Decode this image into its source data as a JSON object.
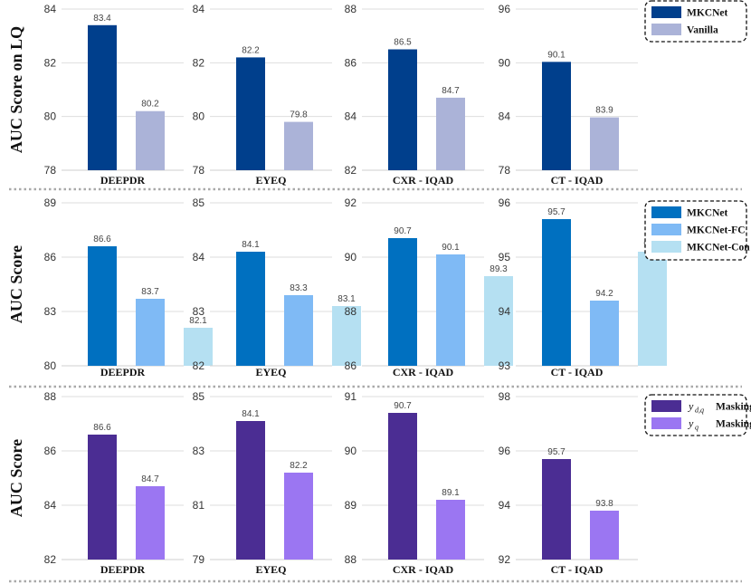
{
  "chart_data": [
    {
      "row_ylabel": "AUC Score on LQ",
      "legend": [
        {
          "label": "MKCNet",
          "color": "#003f8c"
        },
        {
          "label": "Vanilla",
          "color": "#abb3d8"
        }
      ],
      "charts": [
        {
          "type": "bar",
          "category": "DEEPDR",
          "ylim": [
            78,
            84
          ],
          "ticks": [
            "78",
            "80",
            "82",
            "84"
          ],
          "series": [
            {
              "name": "MKCNet",
              "value": 83.4
            },
            {
              "name": "Vanilla",
              "value": 80.2
            }
          ],
          "value_labels": [
            "83.4",
            "80.2"
          ]
        },
        {
          "type": "bar",
          "category": "EYEQ",
          "ylim": [
            78,
            84
          ],
          "ticks": [
            "78",
            "80",
            "82",
            "84"
          ],
          "series": [
            {
              "name": "MKCNet",
              "value": 82.2
            },
            {
              "name": "Vanilla",
              "value": 79.8
            }
          ],
          "value_labels": [
            "82.2",
            "79.8"
          ]
        },
        {
          "type": "bar",
          "category": "CXR - IQAD",
          "ylim": [
            82,
            88
          ],
          "ticks": [
            "82",
            "84",
            "86",
            "88"
          ],
          "series": [
            {
              "name": "MKCNet",
              "value": 86.5
            },
            {
              "name": "Vanilla",
              "value": 84.7
            }
          ],
          "value_labels": [
            "86.5",
            "84.7"
          ]
        },
        {
          "type": "bar",
          "category": "CT - IQAD",
          "ylim": [
            78,
            96
          ],
          "ticks": [
            "78",
            "84",
            "90",
            "96"
          ],
          "series": [
            {
              "name": "MKCNet",
              "value": 90.1
            },
            {
              "name": "Vanilla",
              "value": 83.9
            }
          ],
          "value_labels": [
            "90.1",
            "83.9"
          ]
        }
      ]
    },
    {
      "row_ylabel": "AUC Score",
      "legend": [
        {
          "label": "MKCNet",
          "color": "#0070c0"
        },
        {
          "label": "MKCNet-FC",
          "color": "#7fbaf5"
        },
        {
          "label": "MKCNet-Con",
          "color": "#b5e0f2"
        }
      ],
      "charts": [
        {
          "type": "bar",
          "category": "DEEPDR",
          "ylim": [
            80,
            89
          ],
          "ticks": [
            "80",
            "83",
            "86",
            "89"
          ],
          "series": [
            {
              "name": "MKCNet",
              "value": 86.6
            },
            {
              "name": "MKCNet-FC",
              "value": 83.7
            },
            {
              "name": "MKCNet-Con",
              "value": 82.1
            }
          ],
          "value_labels": [
            "86.6",
            "83.7",
            "82.1"
          ]
        },
        {
          "type": "bar",
          "category": "EYEQ",
          "ylim": [
            82,
            85
          ],
          "ticks": [
            "82",
            "83",
            "84",
            "85"
          ],
          "series": [
            {
              "name": "MKCNet",
              "value": 84.1
            },
            {
              "name": "MKCNet-FC",
              "value": 83.3
            },
            {
              "name": "MKCNet-Con",
              "value": 83.1
            }
          ],
          "value_labels": [
            "84.1",
            "83.3",
            "83.1"
          ]
        },
        {
          "type": "bar",
          "category": "CXR - IQAD",
          "ylim": [
            86,
            92
          ],
          "ticks": [
            "86",
            "88",
            "90",
            "92"
          ],
          "series": [
            {
              "name": "MKCNet",
              "value": 90.7
            },
            {
              "name": "MKCNet-FC",
              "value": 90.1
            },
            {
              "name": "MKCNet-Con",
              "value": 89.3
            }
          ],
          "value_labels": [
            "90.7",
            "90.1",
            "89.3"
          ]
        },
        {
          "type": "bar",
          "category": "CT - IQAD",
          "ylim": [
            93,
            96
          ],
          "ticks": [
            "93",
            "94",
            "95",
            "96"
          ],
          "series": [
            {
              "name": "MKCNet",
              "value": 95.7
            },
            {
              "name": "MKCNet-FC",
              "value": 94.2
            },
            {
              "name": "MKCNet-Con",
              "value": 95.1
            }
          ],
          "value_labels": [
            "95.7",
            "94.2",
            "95.1"
          ]
        }
      ]
    },
    {
      "row_ylabel": "AUC Score",
      "legend": [
        {
          "label_var": "y",
          "label_sub": "d,q",
          "label_suffix": "Masking",
          "color": "#4b2d93"
        },
        {
          "label_var": "y",
          "label_sub": "q",
          "label_suffix": "Masking",
          "color": "#9b76f2"
        }
      ],
      "charts": [
        {
          "type": "bar",
          "category": "DEEPDR",
          "ylim": [
            82,
            88
          ],
          "ticks": [
            "82",
            "84",
            "86",
            "88"
          ],
          "series": [
            {
              "name": "y_d,q Masking",
              "value": 86.6
            },
            {
              "name": "y_q Masking",
              "value": 84.7
            }
          ],
          "value_labels": [
            "86.6",
            "84.7"
          ]
        },
        {
          "type": "bar",
          "category": "EYEQ",
          "ylim": [
            79,
            85
          ],
          "ticks": [
            "79",
            "81",
            "83",
            "85"
          ],
          "series": [
            {
              "name": "y_d,q Masking",
              "value": 84.1
            },
            {
              "name": "y_q Masking",
              "value": 82.2
            }
          ],
          "value_labels": [
            "84.1",
            "82.2"
          ]
        },
        {
          "type": "bar",
          "category": "CXR - IQAD",
          "ylim": [
            88,
            91
          ],
          "ticks": [
            "88",
            "89",
            "90",
            "91"
          ],
          "series": [
            {
              "name": "y_d,q Masking",
              "value": 90.7
            },
            {
              "name": "y_q Masking",
              "value": 89.1
            }
          ],
          "value_labels": [
            "90.7",
            "89.1"
          ]
        },
        {
          "type": "bar",
          "category": "CT - IQAD",
          "ylim": [
            92,
            98
          ],
          "ticks": [
            "92",
            "94",
            "96",
            "98"
          ],
          "series": [
            {
              "name": "y_d,q Masking",
              "value": 95.7
            },
            {
              "name": "y_q Masking",
              "value": 93.8
            }
          ],
          "value_labels": [
            "95.7",
            "93.8"
          ]
        }
      ]
    }
  ]
}
